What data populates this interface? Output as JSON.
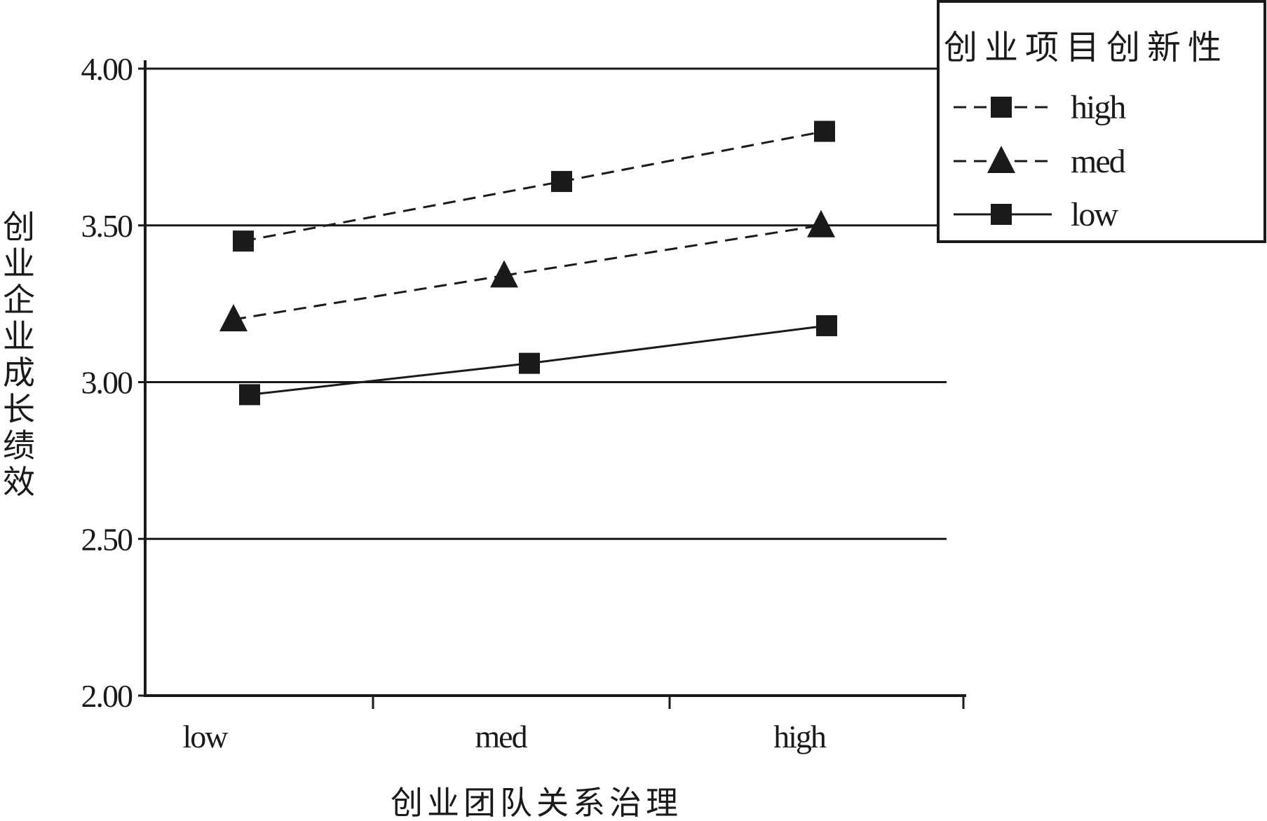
{
  "chart_data": {
    "type": "line",
    "x_title": "创业团队关系治理",
    "y_title": "创业企业成长绩效",
    "categories": [
      "low",
      "med",
      "high"
    ],
    "ylim": [
      2.0,
      4.0
    ],
    "y_ticks": [
      "2.00",
      "2.50",
      "3.00",
      "3.50",
      "4.00"
    ],
    "grid": true,
    "legend_position": "top-right",
    "legend_title": "创业项目创新性",
    "series": [
      {
        "name": "high",
        "values": [
          3.45,
          3.64,
          3.8
        ],
        "marker": "square",
        "line": "dashed",
        "color": "#1a1a1a"
      },
      {
        "name": "med",
        "values": [
          3.2,
          3.34,
          3.5
        ],
        "marker": "triangle",
        "line": "dashed",
        "color": "#1a1a1a"
      },
      {
        "name": "low",
        "values": [
          2.96,
          3.06,
          3.18
        ],
        "marker": "square",
        "line": "solid",
        "color": "#1a1a1a"
      }
    ]
  }
}
